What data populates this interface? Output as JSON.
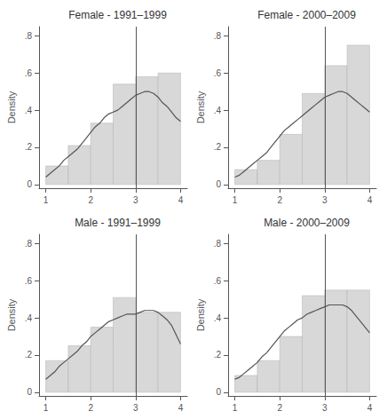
{
  "chart_data": [
    {
      "type": "histogram",
      "title": "Female - 1991–1999",
      "y_label": "Density",
      "bins": [
        1.0,
        1.5,
        2.0,
        2.5,
        3.0,
        3.5,
        4.0
      ],
      "values": [
        0.1,
        0.21,
        0.33,
        0.54,
        0.58,
        0.6
      ],
      "color": "#d8d8d8",
      "series": [
        {
          "type": "line",
          "color": "#555555",
          "x": [
            1.0,
            1.1,
            1.2,
            1.3,
            1.4,
            1.5,
            1.6,
            1.7,
            1.8,
            1.9,
            2.0,
            2.1,
            2.2,
            2.3,
            2.4,
            2.5,
            2.6,
            2.7,
            2.8,
            2.9,
            3.0,
            3.1,
            3.2,
            3.3,
            3.4,
            3.5,
            3.6,
            3.7,
            3.8,
            3.9,
            4.0
          ],
          "values": [
            0.04,
            0.06,
            0.08,
            0.1,
            0.13,
            0.15,
            0.17,
            0.19,
            0.22,
            0.25,
            0.28,
            0.31,
            0.33,
            0.36,
            0.38,
            0.39,
            0.4,
            0.42,
            0.44,
            0.46,
            0.48,
            0.49,
            0.5,
            0.5,
            0.49,
            0.47,
            0.44,
            0.42,
            0.39,
            0.36,
            0.34
          ]
        },
        {
          "type": "vline",
          "color": "#555555",
          "x": 3.0
        }
      ],
      "xlim": [
        0.85,
        4.15
      ],
      "xticks": [
        1,
        2,
        3,
        4
      ],
      "ylim": [
        -0.02,
        0.85
      ],
      "yticks": [
        0,
        {
          "value": 0.2,
          "label": ".2"
        },
        {
          "value": 0.4,
          "label": ".4"
        },
        {
          "value": 0.6,
          "label": ".6"
        },
        {
          "value": 0.8,
          "label": ".8"
        }
      ],
      "grid": false
    },
    {
      "type": "histogram",
      "title": "Female - 2000–2009",
      "y_label": "Density",
      "bins": [
        1.0,
        1.5,
        2.0,
        2.5,
        3.0,
        3.5,
        4.0
      ],
      "values": [
        0.08,
        0.13,
        0.27,
        0.49,
        0.64,
        0.75
      ],
      "color": "#d8d8d8",
      "series": [
        {
          "type": "line",
          "color": "#555555",
          "x": [
            1.0,
            1.1,
            1.2,
            1.3,
            1.4,
            1.5,
            1.6,
            1.7,
            1.8,
            1.9,
            2.0,
            2.1,
            2.2,
            2.3,
            2.4,
            2.5,
            2.6,
            2.7,
            2.8,
            2.9,
            3.0,
            3.1,
            3.2,
            3.3,
            3.4,
            3.5,
            3.6,
            3.7,
            3.8,
            3.9,
            4.0
          ],
          "values": [
            0.04,
            0.05,
            0.07,
            0.09,
            0.11,
            0.13,
            0.15,
            0.17,
            0.2,
            0.23,
            0.26,
            0.29,
            0.31,
            0.33,
            0.35,
            0.37,
            0.39,
            0.41,
            0.43,
            0.45,
            0.47,
            0.48,
            0.49,
            0.5,
            0.5,
            0.49,
            0.47,
            0.45,
            0.43,
            0.41,
            0.39
          ]
        },
        {
          "type": "vline",
          "color": "#555555",
          "x": 3.0
        }
      ],
      "xlim": [
        0.85,
        4.15
      ],
      "xticks": [
        1,
        2,
        3,
        4
      ],
      "ylim": [
        -0.02,
        0.85
      ],
      "yticks": [
        0,
        {
          "value": 0.2,
          "label": ".2"
        },
        {
          "value": 0.4,
          "label": ".4"
        },
        {
          "value": 0.6,
          "label": ".6"
        },
        {
          "value": 0.8,
          "label": ".8"
        }
      ],
      "grid": false
    },
    {
      "type": "histogram",
      "title": "Male - 1991–1999",
      "y_label": "Density",
      "bins": [
        1.0,
        1.5,
        2.0,
        2.5,
        3.0,
        3.5,
        4.0
      ],
      "values": [
        0.17,
        0.25,
        0.35,
        0.51,
        0.43,
        0.43
      ],
      "color": "#d8d8d8",
      "series": [
        {
          "type": "line",
          "color": "#555555",
          "x": [
            1.0,
            1.1,
            1.2,
            1.3,
            1.4,
            1.5,
            1.6,
            1.7,
            1.8,
            1.9,
            2.0,
            2.1,
            2.2,
            2.3,
            2.4,
            2.5,
            2.6,
            2.7,
            2.8,
            2.9,
            3.0,
            3.1,
            3.2,
            3.3,
            3.4,
            3.5,
            3.6,
            3.7,
            3.8,
            3.9,
            4.0
          ],
          "values": [
            0.07,
            0.09,
            0.11,
            0.14,
            0.16,
            0.18,
            0.2,
            0.22,
            0.25,
            0.27,
            0.3,
            0.32,
            0.34,
            0.36,
            0.38,
            0.39,
            0.4,
            0.41,
            0.42,
            0.42,
            0.42,
            0.43,
            0.44,
            0.44,
            0.44,
            0.43,
            0.41,
            0.39,
            0.36,
            0.31,
            0.26
          ]
        },
        {
          "type": "vline",
          "color": "#555555",
          "x": 3.0
        }
      ],
      "xlim": [
        0.85,
        4.15
      ],
      "xticks": [
        1,
        2,
        3,
        4
      ],
      "ylim": [
        -0.02,
        0.85
      ],
      "yticks": [
        0,
        {
          "value": 0.2,
          "label": ".2"
        },
        {
          "value": 0.4,
          "label": ".4"
        },
        {
          "value": 0.6,
          "label": ".6"
        },
        {
          "value": 0.8,
          "label": ".8"
        }
      ],
      "grid": false
    },
    {
      "type": "histogram",
      "title": "Male - 2000–2009",
      "y_label": "Density",
      "bins": [
        1.0,
        1.5,
        2.0,
        2.5,
        3.0,
        3.5,
        4.0
      ],
      "values": [
        0.09,
        0.17,
        0.3,
        0.52,
        0.55,
        0.55
      ],
      "color": "#d8d8d8",
      "series": [
        {
          "type": "line",
          "color": "#555555",
          "x": [
            1.0,
            1.1,
            1.2,
            1.3,
            1.4,
            1.5,
            1.6,
            1.7,
            1.8,
            1.9,
            2.0,
            2.1,
            2.2,
            2.3,
            2.4,
            2.5,
            2.6,
            2.7,
            2.8,
            2.9,
            3.0,
            3.1,
            3.2,
            3.3,
            3.4,
            3.5,
            3.6,
            3.7,
            3.8,
            3.9,
            4.0
          ],
          "values": [
            0.07,
            0.08,
            0.1,
            0.12,
            0.14,
            0.16,
            0.19,
            0.21,
            0.24,
            0.27,
            0.3,
            0.33,
            0.35,
            0.37,
            0.39,
            0.4,
            0.42,
            0.43,
            0.44,
            0.45,
            0.46,
            0.47,
            0.47,
            0.47,
            0.47,
            0.46,
            0.44,
            0.41,
            0.38,
            0.35,
            0.32
          ]
        },
        {
          "type": "vline",
          "color": "#555555",
          "x": 3.0
        }
      ],
      "xlim": [
        0.85,
        4.15
      ],
      "xticks": [
        1,
        2,
        3,
        4
      ],
      "ylim": [
        -0.02,
        0.85
      ],
      "yticks": [
        0,
        {
          "value": 0.2,
          "label": ".2"
        },
        {
          "value": 0.4,
          "label": ".4"
        },
        {
          "value": 0.6,
          "label": ".6"
        },
        {
          "value": 0.8,
          "label": ".8"
        }
      ],
      "grid": false
    }
  ]
}
